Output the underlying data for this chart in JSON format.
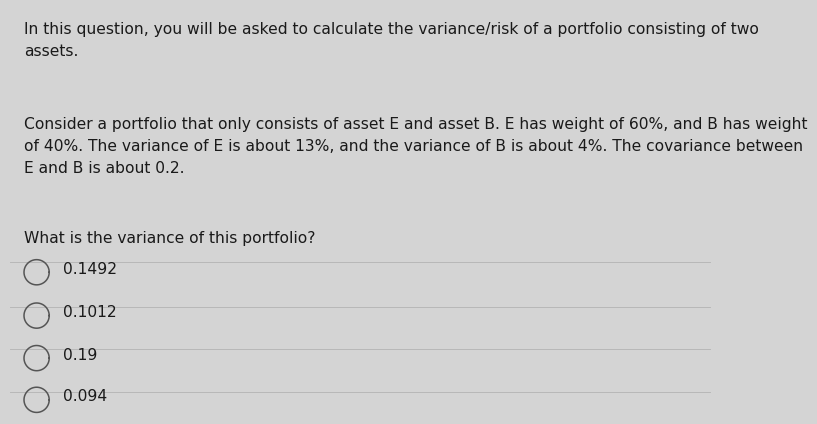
{
  "background_color": "#d4d4d4",
  "intro_text": "In this question, you will be asked to calculate the variance/risk of a portfolio consisting of two\nassets.",
  "body_text": "Consider a portfolio that only consists of asset E and asset B. E has weight of 60%, and B has weight\nof 40%. The variance of E is about 13%, and the variance of B is about 4%. The covariance between\nE and B is about 0.2.",
  "question_text": "What is the variance of this portfolio?",
  "options": [
    "0.1492",
    "0.1012",
    "0.19",
    "0.094"
  ],
  "font_size": 11.2,
  "text_color": "#1a1a1a",
  "divider_color": "#b8b8b8",
  "circle_color": "#555555"
}
